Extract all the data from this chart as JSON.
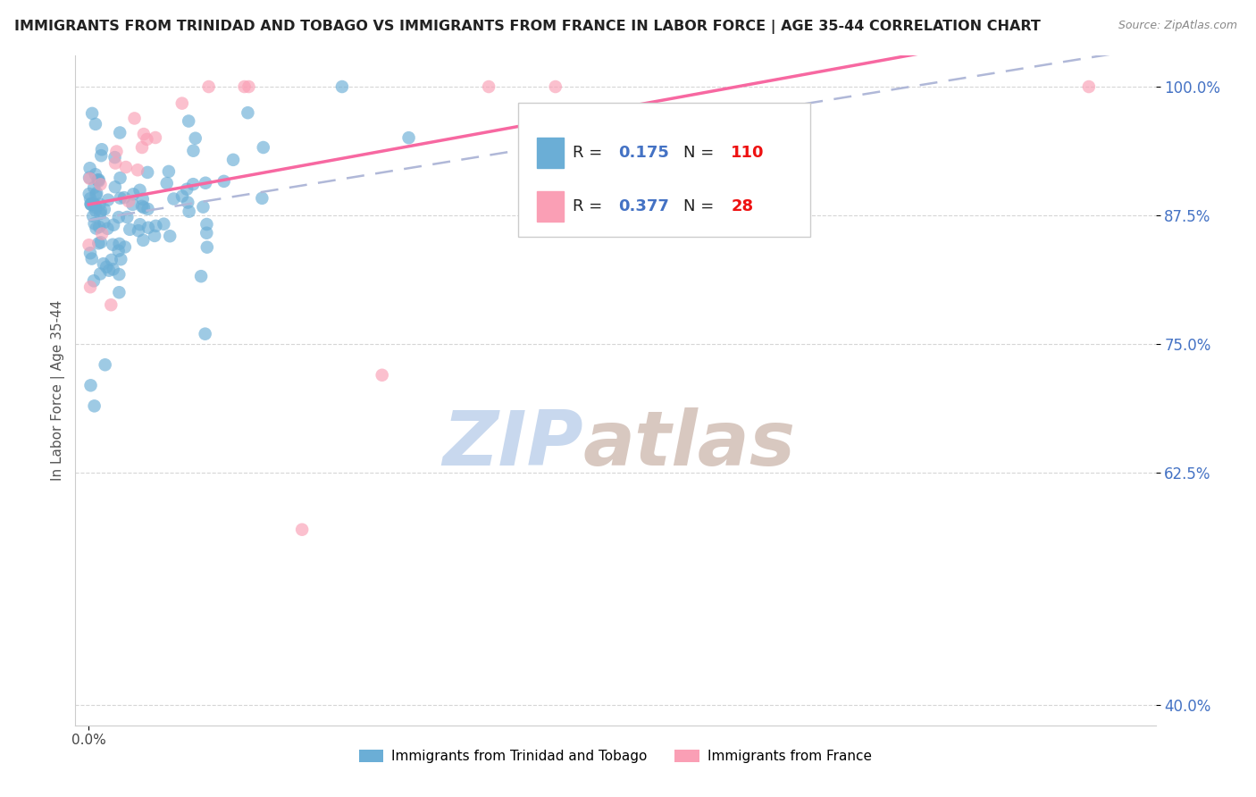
{
  "title": "IMMIGRANTS FROM TRINIDAD AND TOBAGO VS IMMIGRANTS FROM FRANCE IN LABOR FORCE | AGE 35-44 CORRELATION CHART",
  "source": "Source: ZipAtlas.com",
  "ylabel": "In Labor Force | Age 35-44",
  "xmin": -0.01,
  "xmax": 0.8,
  "ymin": 0.38,
  "ymax": 1.03,
  "ytick_values": [
    0.4,
    0.625,
    0.75,
    0.875,
    1.0
  ],
  "ytick_labels": [
    "40.0%",
    "62.5%",
    "75.0%",
    "87.5%",
    "100.0%"
  ],
  "xtick_values": [
    0.0
  ],
  "xtick_labels": [
    "0.0%"
  ],
  "legend_labels": [
    "Immigrants from Trinidad and Tobago",
    "Immigrants from France"
  ],
  "trinidad_color": "#6baed6",
  "france_color": "#fa9fb5",
  "france_line_color": "#f768a1",
  "trinidad_line_color": "#b0b8d8",
  "trinidad_R": 0.175,
  "trinidad_N": 110,
  "france_R": 0.377,
  "france_N": 28,
  "background_color": "#ffffff",
  "grid_color": "#cccccc",
  "title_color": "#222222",
  "right_tick_color": "#4472c4",
  "legend_r_color": "#4472c4",
  "legend_n_color": "#ee1111",
  "watermark_zip_color": "#c8d8ee",
  "watermark_atlas_color": "#d8c8c0"
}
